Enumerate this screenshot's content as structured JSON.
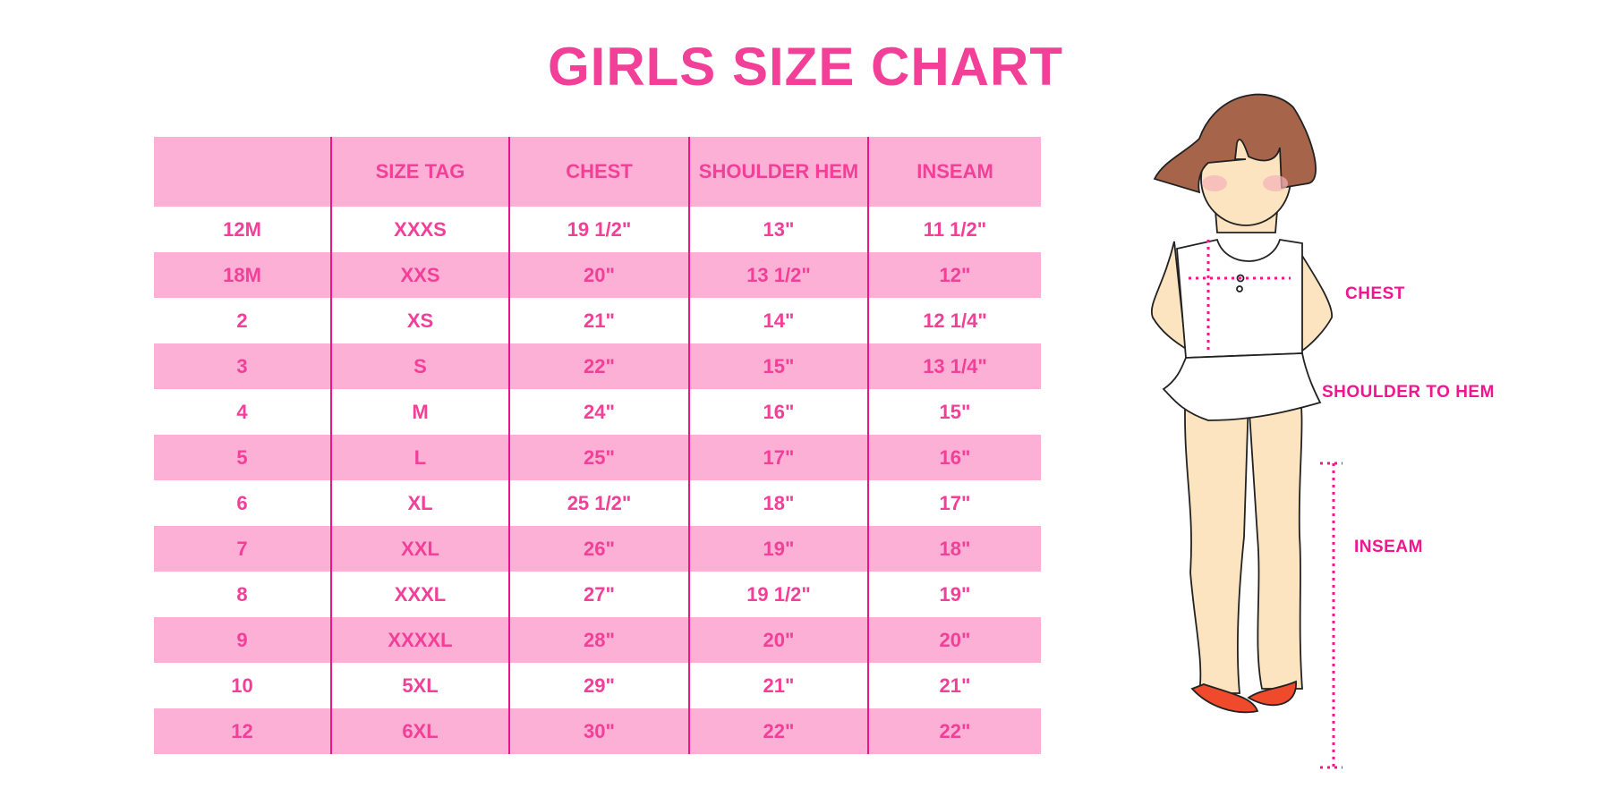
{
  "title": "GIRLS SIZE CHART",
  "table": {
    "headers": [
      "",
      "SIZE TAG",
      "CHEST",
      "SHOULDER HEM",
      "INSEAM"
    ],
    "rows": [
      [
        "12M",
        "XXXS",
        "19 1/2\"",
        "13\"",
        "11 1/2\""
      ],
      [
        "18M",
        "XXS",
        "20\"",
        "13 1/2\"",
        "12\""
      ],
      [
        "2",
        "XS",
        "21\"",
        "14\"",
        "12 1/4\""
      ],
      [
        "3",
        "S",
        "22\"",
        "15\"",
        "13 1/4\""
      ],
      [
        "4",
        "M",
        "24\"",
        "16\"",
        "15\""
      ],
      [
        "5",
        "L",
        "25\"",
        "17\"",
        "16\""
      ],
      [
        "6",
        "XL",
        "25 1/2\"",
        "18\"",
        "17\""
      ],
      [
        "7",
        "XXL",
        "26\"",
        "19\"",
        "18\""
      ],
      [
        "8",
        "XXXL",
        "27\"",
        "19 1/2\"",
        "19\""
      ],
      [
        "9",
        "XXXXL",
        "28\"",
        "20\"",
        "20\""
      ],
      [
        "10",
        "5XL",
        "29\"",
        "21\"",
        "21\""
      ],
      [
        "12",
        "6XL",
        "30\"",
        "22\"",
        "22\""
      ]
    ]
  },
  "figure": {
    "labels": {
      "chest": "CHEST",
      "shoulder_to_hem": "SHOULDER TO HEM",
      "inseam": "INSEAM"
    }
  },
  "colors": {
    "text": "#f23f98",
    "band": "#fdb0d5",
    "divider": "#e8168a",
    "measure": "#f0168f"
  }
}
